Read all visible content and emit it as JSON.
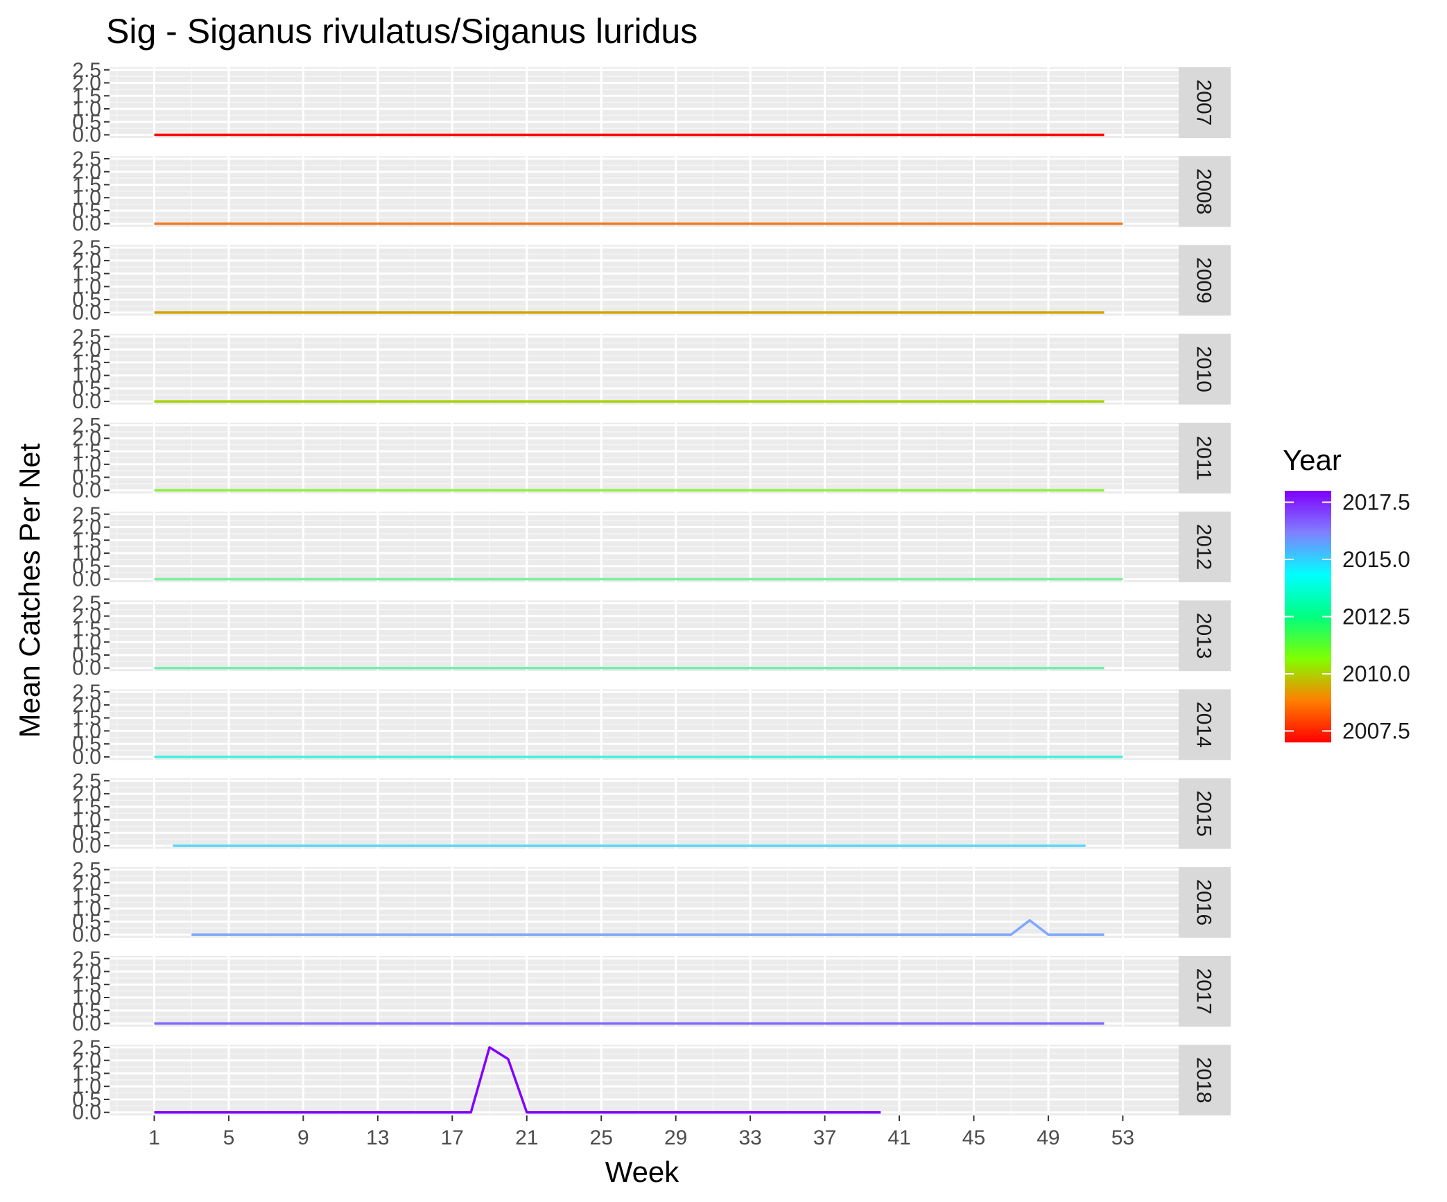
{
  "chart_data": {
    "type": "line",
    "title": "Sig - Siganus rivulatus/Siganus luridus",
    "xlabel": "Week",
    "ylabel": "Mean Catches Per Net",
    "xlim": [
      -1.4,
      56
    ],
    "ylim": [
      -0.12,
      2.6
    ],
    "x_ticks": [
      1,
      5,
      9,
      13,
      17,
      21,
      25,
      29,
      33,
      37,
      41,
      45,
      49,
      53
    ],
    "x_tick_labels": [
      "1",
      "5",
      "9",
      "13",
      "17",
      "21",
      "25",
      "29",
      "33",
      "37",
      "41",
      "45",
      "49",
      "53"
    ],
    "y_ticks": [
      0,
      0.5,
      1,
      1.5,
      2,
      2.5
    ],
    "y_tick_labels": [
      "0.0",
      "0.5",
      "1.0",
      "1.5",
      "2.0",
      "2.5"
    ],
    "facet": "Year",
    "grid": true,
    "legend": {
      "title": "Year",
      "type": "colorbar",
      "placement": "right",
      "range": [
        2007,
        2018
      ],
      "ticks": [
        2007.5,
        2010.0,
        2012.5,
        2015.0,
        2017.5
      ],
      "tick_labels": [
        "2007.5",
        "2010.0",
        "2012.5",
        "2015.0",
        "2017.5"
      ],
      "colors": [
        "#ff0000",
        "#ff8000",
        "#80ff00",
        "#00ff80",
        "#00ffff",
        "#8080ff",
        "#8000ff"
      ]
    },
    "series": [
      {
        "facet_label": "2007",
        "year": 2007,
        "color": "#ff0000",
        "x": [
          1,
          52
        ],
        "y": [
          0,
          0
        ]
      },
      {
        "facet_label": "2008",
        "year": 2008,
        "color": "#f07820",
        "x": [
          1,
          53
        ],
        "y": [
          0,
          0
        ]
      },
      {
        "facet_label": "2009",
        "year": 2009,
        "color": "#d2a400",
        "x": [
          1,
          52
        ],
        "y": [
          0,
          0
        ]
      },
      {
        "facet_label": "2010",
        "year": 2010,
        "color": "#a8d200",
        "x": [
          1,
          52
        ],
        "y": [
          0,
          0
        ]
      },
      {
        "facet_label": "2011",
        "year": 2011,
        "color": "#8cf040",
        "x": [
          1,
          52
        ],
        "y": [
          0,
          0
        ]
      },
      {
        "facet_label": "2012",
        "year": 2012,
        "color": "#7cf0a0",
        "x": [
          1,
          53
        ],
        "y": [
          0,
          0
        ]
      },
      {
        "facet_label": "2013",
        "year": 2013,
        "color": "#70f0b0",
        "x": [
          1,
          52
        ],
        "y": [
          0,
          0
        ]
      },
      {
        "facet_label": "2014",
        "year": 2014,
        "color": "#40f0e0",
        "x": [
          1,
          53
        ],
        "y": [
          0,
          0
        ]
      },
      {
        "facet_label": "2015",
        "year": 2015,
        "color": "#5cd8ff",
        "x": [
          2,
          51
        ],
        "y": [
          0,
          0
        ]
      },
      {
        "facet_label": "2016",
        "year": 2016,
        "color": "#80a8ff",
        "x": [
          3,
          47,
          48,
          49,
          52
        ],
        "y": [
          0,
          0,
          0.55,
          0,
          0
        ]
      },
      {
        "facet_label": "2017",
        "year": 2017,
        "color": "#8066ff",
        "x": [
          1,
          52
        ],
        "y": [
          0,
          0
        ]
      },
      {
        "facet_label": "2018",
        "year": 2018,
        "color": "#8000ff",
        "x": [
          1,
          18,
          19,
          20,
          21,
          40
        ],
        "y": [
          0,
          0,
          2.5,
          2.05,
          0,
          0
        ]
      }
    ]
  }
}
